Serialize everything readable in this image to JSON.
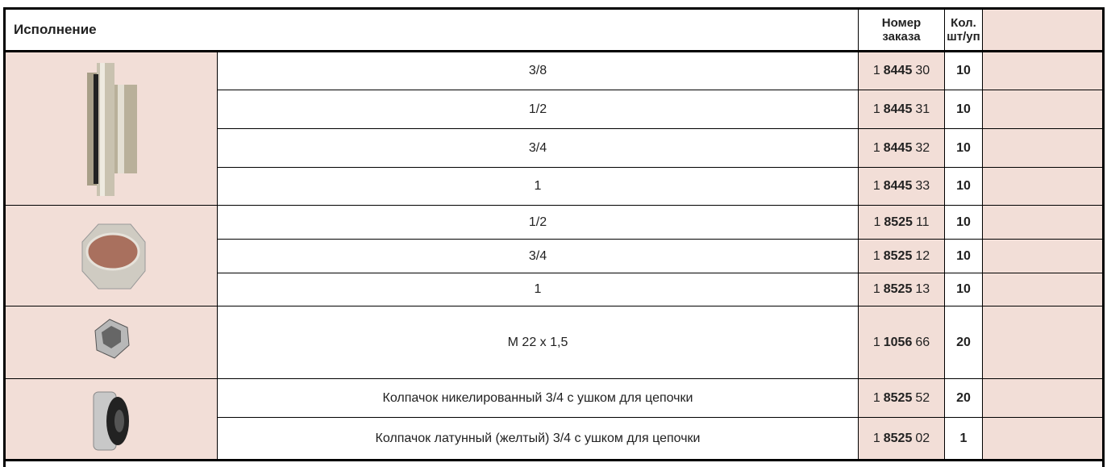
{
  "header": {
    "title": "Исполнение",
    "order": [
      "Номер",
      "заказа"
    ],
    "qty": [
      "Кол.",
      "шт/уп"
    ]
  },
  "groups": [
    {
      "rows": [
        {
          "desc": "3/8",
          "order": [
            "1",
            "8445",
            "30"
          ],
          "qty": "10"
        },
        {
          "desc": "1/2",
          "order": [
            "1",
            "8445",
            "31"
          ],
          "qty": "10"
        },
        {
          "desc": "3/4",
          "order": [
            "1",
            "8445",
            "32"
          ],
          "qty": "10"
        },
        {
          "desc": "1",
          "order": [
            "1",
            "8445",
            "33"
          ],
          "qty": "10"
        }
      ]
    },
    {
      "rows": [
        {
          "desc": "1/2",
          "order": [
            "1",
            "8525",
            "11"
          ],
          "qty": "10"
        },
        {
          "desc": "3/4",
          "order": [
            "1",
            "8525",
            "12"
          ],
          "qty": "10"
        },
        {
          "desc": "1",
          "order": [
            "1",
            "8525",
            "13"
          ],
          "qty": "10"
        }
      ]
    },
    {
      "rows": [
        {
          "desc": "M 22 x 1,5",
          "order": [
            "1",
            "1056",
            "66"
          ],
          "qty": "20"
        }
      ]
    },
    {
      "rows": [
        {
          "desc": "Колпачок никелированный 3/4 с ушком для цепочки",
          "order": [
            "1",
            "8525",
            "52"
          ],
          "qty": "20"
        },
        {
          "desc": "Колпачок латунный (желтый) 3/4 с ушком для цепочки",
          "order": [
            "1",
            "8525",
            "02"
          ],
          "qty": "1"
        }
      ]
    }
  ]
}
